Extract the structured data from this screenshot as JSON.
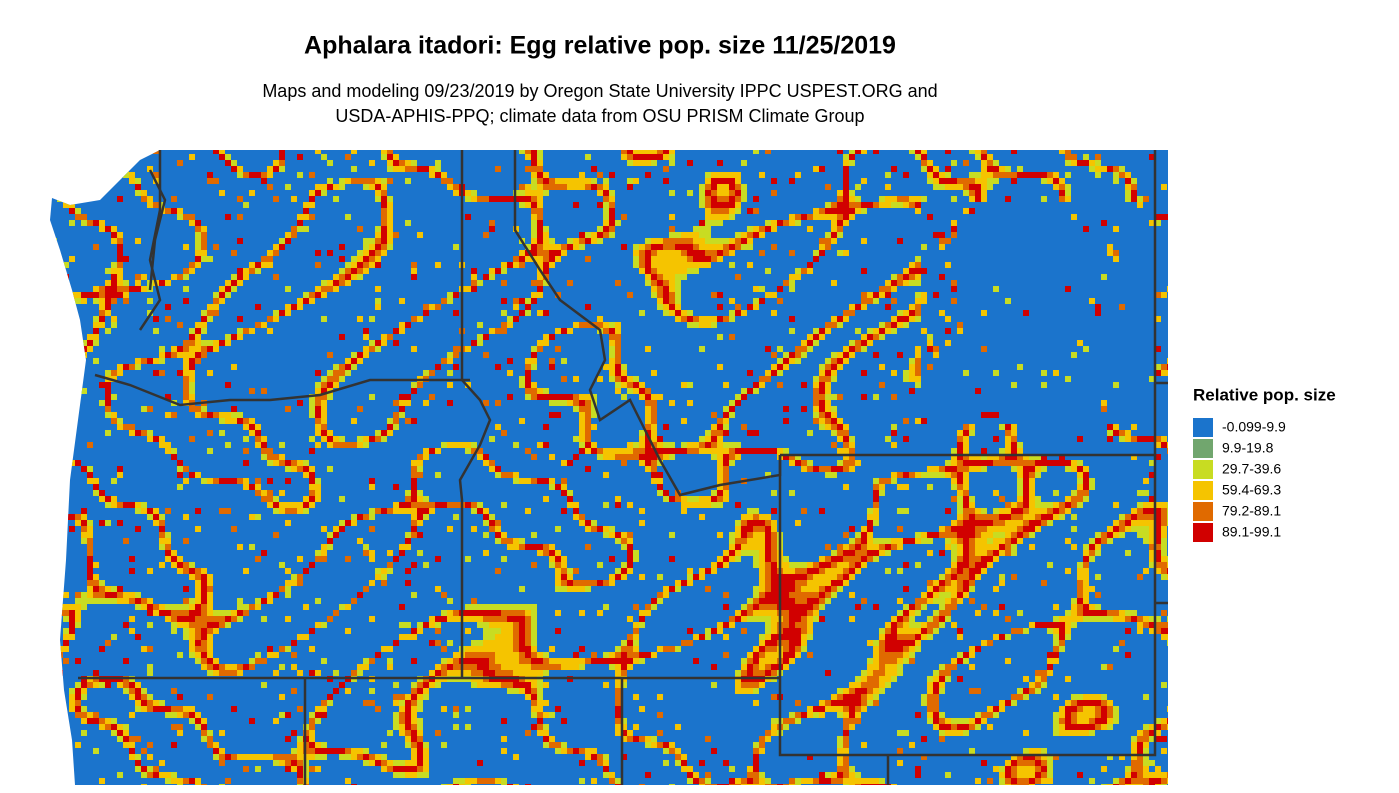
{
  "header": {
    "title": "Aphalara itadori: Egg relative pop. size 11/25/2019",
    "subtitle_lines": [
      "Maps and modeling 09/23/2019 by Oregon State University IPPC USPEST.ORG and",
      "USDA-APHIS-PPQ; climate data from OSU PRISM Climate Group"
    ]
  },
  "legend": {
    "title": "Relative pop. size",
    "items": [
      {
        "label": "-0.099-9.9",
        "color": "#1b74cc"
      },
      {
        "label": "9.9-19.8",
        "color": "#71a66e"
      },
      {
        "label": "29.7-39.6",
        "color": "#c8dc22"
      },
      {
        "label": "59.4-69.3",
        "color": "#f5c400"
      },
      {
        "label": "79.2-89.1",
        "color": "#e06a00"
      },
      {
        "label": "89.1-99.1",
        "color": "#d10000"
      }
    ]
  }
}
